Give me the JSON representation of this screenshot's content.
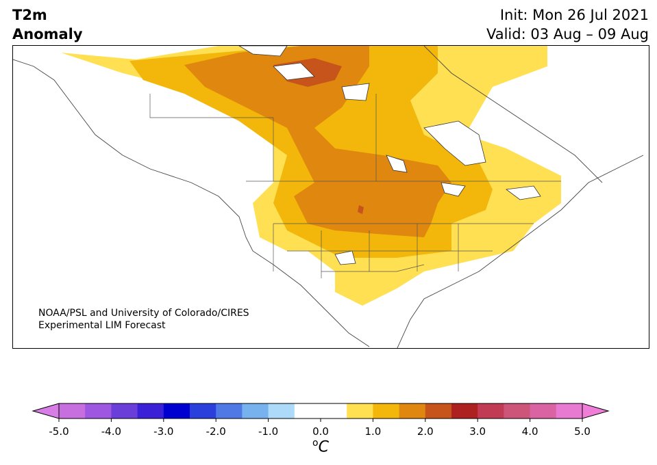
{
  "title": {
    "variable": "T2m",
    "subtitle": "Anomaly",
    "init": "Init: Mon 26 Jul 2021",
    "valid": "Valid: 03 Aug – 09 Aug"
  },
  "map": {
    "credit_line1": "NOAA/PSL and University of Colorado/CIRES",
    "credit_line2": "Experimental LIM Forecast"
  },
  "colorbar": {
    "unit_base": "C",
    "unit_sup": "o",
    "ticks": [
      "-5.0",
      "-4.0",
      "-3.0",
      "-2.0",
      "-1.0",
      "0.0",
      "1.0",
      "2.0",
      "3.0",
      "4.0",
      "5.0"
    ],
    "colors": [
      "#c86fe0",
      "#9d57e0",
      "#6a3ed8",
      "#3a20d6",
      "#0000d0",
      "#2a3fdc",
      "#4f79e4",
      "#78b2ee",
      "#acdaf8",
      "#ffffff",
      "#ffffff",
      "#ffe052",
      "#f2b70a",
      "#df870f",
      "#c7541a",
      "#ad2120",
      "#c03b53",
      "#cc5579",
      "#da64a3",
      "#e87ad2"
    ],
    "min_color": "#d77ee6",
    "max_color": "#ee7ed8"
  },
  "legend_colors": {
    "anom_05_10": "#ffe052",
    "anom_10_15": "#f2b70a",
    "anom_15_20": "#df870f",
    "anom_20_25": "#c7541a"
  }
}
